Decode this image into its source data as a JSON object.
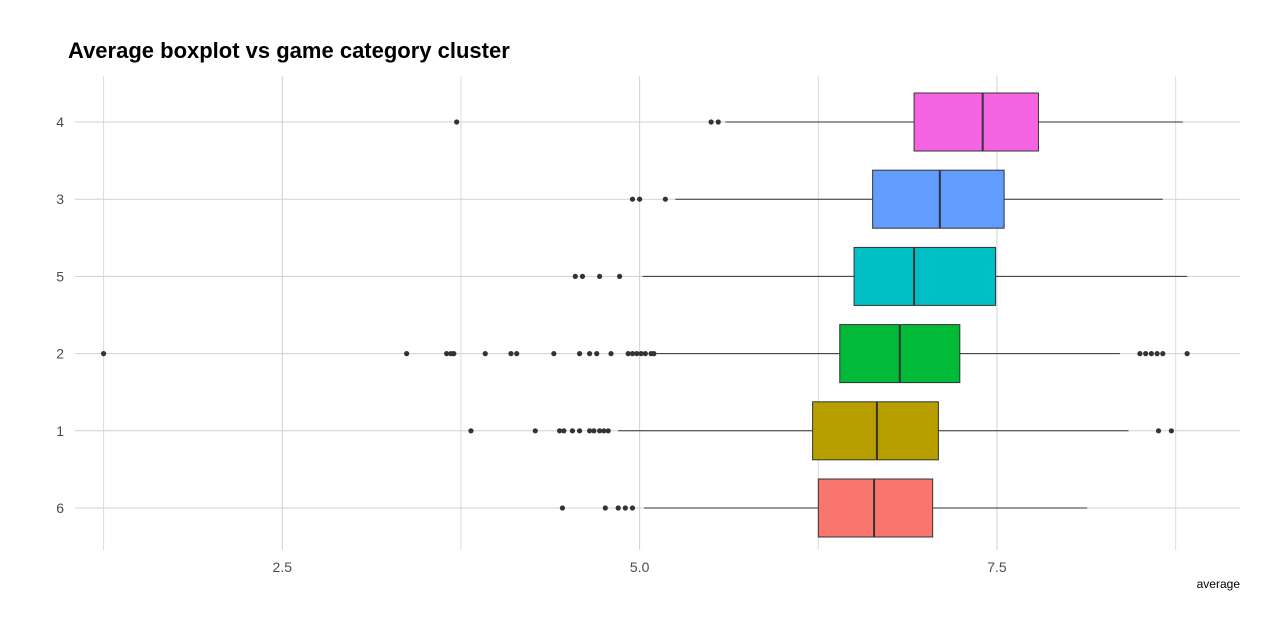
{
  "chart_data": {
    "type": "boxplot",
    "title": "Average boxplot vs game category cluster",
    "xlabel": "average",
    "ylabel": "",
    "orientation": "horizontal",
    "xlim": [
      1.05,
      9.2
    ],
    "x_ticks": [
      2.5,
      5.0,
      7.5
    ],
    "x_tick_labels": [
      "2.5",
      "5.0",
      "7.5"
    ],
    "categories": [
      "4",
      "3",
      "5",
      "2",
      "1",
      "6"
    ],
    "grid": true,
    "legend": "none",
    "series": [
      {
        "category": "4",
        "color": "#F564E3",
        "q1": 6.92,
        "median": 7.4,
        "q3": 7.79,
        "whisker_low": 5.6,
        "whisker_high": 8.8,
        "outliers": [
          3.72,
          5.5,
          5.55
        ]
      },
      {
        "category": "3",
        "color": "#619CFF",
        "q1": 6.63,
        "median": 7.1,
        "q3": 7.55,
        "whisker_low": 5.25,
        "whisker_high": 8.66,
        "outliers": [
          4.95,
          5.0,
          5.18
        ]
      },
      {
        "category": "5",
        "color": "#00BFC4",
        "q1": 6.5,
        "median": 6.92,
        "q3": 7.49,
        "whisker_low": 5.02,
        "whisker_high": 8.83,
        "outliers": [
          4.55,
          4.6,
          4.72,
          4.86
        ]
      },
      {
        "category": "2",
        "color": "#00BA38",
        "q1": 6.4,
        "median": 6.82,
        "q3": 7.24,
        "whisker_low": 5.12,
        "whisker_high": 8.36,
        "outliers": [
          1.25,
          3.37,
          3.65,
          3.68,
          3.7,
          3.92,
          4.1,
          4.14,
          4.4,
          4.58,
          4.65,
          4.7,
          4.8,
          4.92,
          4.95,
          4.98,
          5.01,
          5.04,
          5.08,
          5.1,
          8.5,
          8.54,
          8.58,
          8.62,
          8.66,
          8.83
        ]
      },
      {
        "category": "1",
        "color": "#B79F00",
        "q1": 6.21,
        "median": 6.66,
        "q3": 7.09,
        "whisker_low": 4.85,
        "whisker_high": 8.42,
        "outliers": [
          3.82,
          4.27,
          4.44,
          4.47,
          4.53,
          4.58,
          4.65,
          4.68,
          4.72,
          4.75,
          4.78,
          8.63,
          8.72
        ]
      },
      {
        "category": "6",
        "color": "#F8766D",
        "q1": 6.25,
        "median": 6.64,
        "q3": 7.05,
        "whisker_low": 5.03,
        "whisker_high": 8.13,
        "outliers": [
          4.46,
          4.76,
          4.85,
          4.9,
          4.95
        ]
      }
    ]
  }
}
